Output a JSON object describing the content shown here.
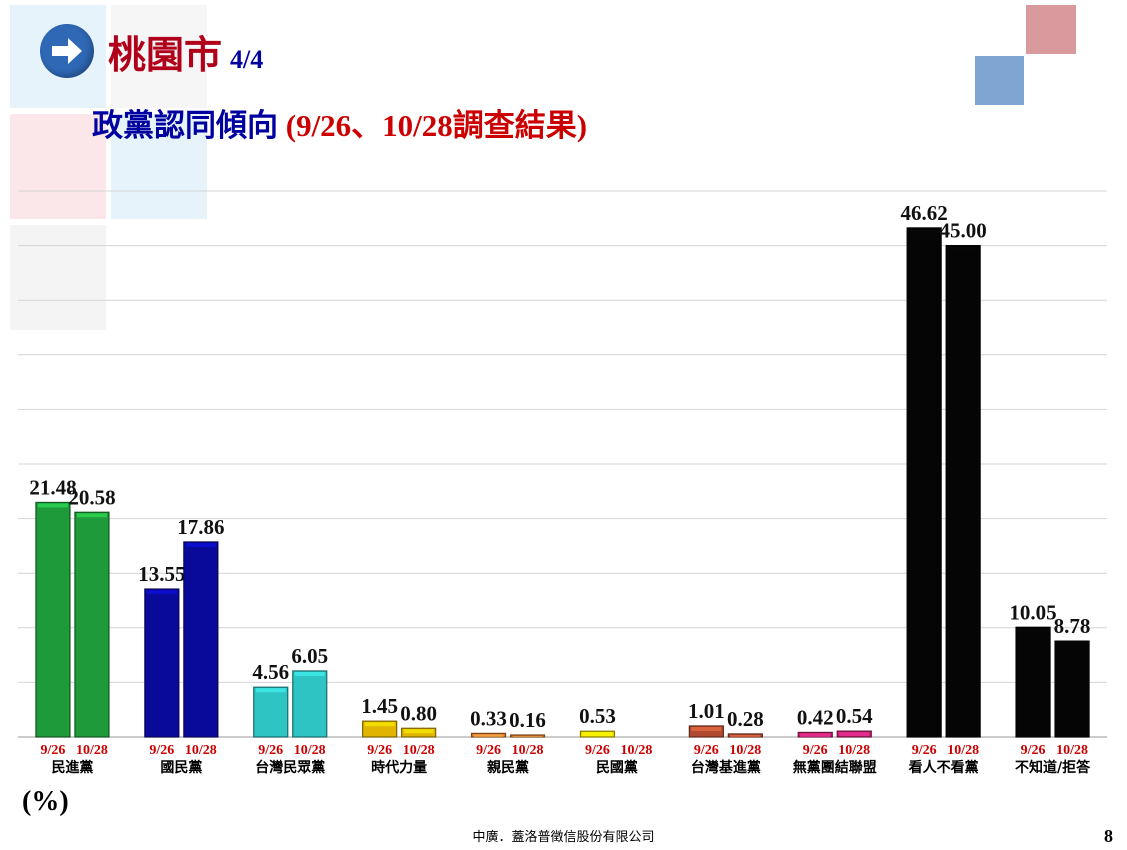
{
  "header": {
    "city": "桃園市",
    "page_part": "4/4",
    "subtitle_main": "政黨認同傾向",
    "subtitle_paren": "(9/26、10/28調查結果)"
  },
  "unit_label": "(%)",
  "footer": {
    "company": "中廣．蓋洛普徵信股份有限公司",
    "page_number": "8"
  },
  "chart_data": {
    "type": "bar",
    "categories": [
      "民進黨",
      "國民黨",
      "台灣民眾黨",
      "時代力量",
      "親民黨",
      "民國黨",
      "台灣基進黨",
      "無黨團結聯盟",
      "看人不看黨",
      "不知道/拒答"
    ],
    "bar_labels": [
      "9/26",
      "10/28"
    ],
    "series": [
      {
        "values": [
          21.48,
          13.55,
          4.56,
          1.45,
          0.33,
          0.53,
          1.01,
          0.42,
          46.62,
          10.05
        ]
      },
      {
        "values": [
          20.58,
          17.86,
          6.05,
          0.8,
          0.16,
          null,
          0.28,
          0.54,
          45.0,
          8.78
        ]
      }
    ],
    "category_colors": [
      "#1f9a3a",
      "#0a0a9a",
      "#2ec4c4",
      "#e0b400",
      "#e07830",
      "#f0e000",
      "#b04a30",
      "#c0206a",
      "#050505",
      "#050505"
    ],
    "ylim": [
      0,
      50
    ],
    "grid": true,
    "legend": "none"
  }
}
